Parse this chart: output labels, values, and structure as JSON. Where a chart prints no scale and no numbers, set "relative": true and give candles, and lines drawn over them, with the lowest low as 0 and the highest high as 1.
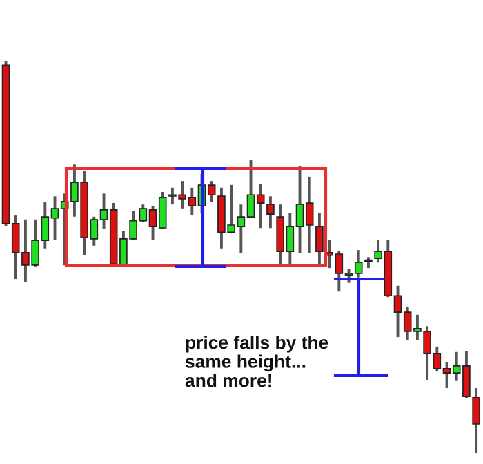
{
  "chart_data": {
    "type": "candlestick",
    "relative": true,
    "categories": [
      null,
      null,
      null,
      null,
      null,
      null,
      null,
      null,
      null,
      null,
      null,
      null,
      null,
      null,
      null,
      null,
      null,
      null,
      null,
      null,
      null,
      null,
      null,
      null,
      null,
      null,
      null,
      null,
      null,
      null,
      null,
      null,
      null,
      null,
      null,
      null,
      null,
      null,
      null,
      null,
      null,
      null,
      null,
      null,
      null,
      null,
      null,
      null,
      null
    ],
    "ohlc": [
      [
        0.989,
        1.0,
        0.581,
        0.585
      ],
      [
        0.585,
        0.602,
        0.447,
        0.511
      ],
      [
        0.511,
        0.592,
        0.44,
        0.479
      ],
      [
        0.479,
        0.592,
        0.479,
        0.542
      ],
      [
        0.542,
        0.637,
        0.525,
        0.602
      ],
      [
        0.599,
        0.651,
        0.546,
        0.623
      ],
      [
        0.623,
        0.658,
        0.482,
        0.641
      ],
      [
        0.641,
        0.732,
        0.606,
        0.69
      ],
      [
        0.69,
        0.715,
        0.507,
        0.549
      ],
      [
        0.546,
        0.599,
        0.532,
        0.595
      ],
      [
        0.595,
        0.658,
        0.574,
        0.62
      ],
      [
        0.62,
        0.634,
        0.482,
        0.482
      ],
      [
        0.479,
        0.563,
        0.479,
        0.546
      ],
      [
        0.546,
        0.613,
        0.546,
        0.592
      ],
      [
        0.592,
        0.63,
        0.592,
        0.623
      ],
      [
        0.62,
        0.627,
        0.546,
        0.577
      ],
      [
        0.574,
        0.662,
        0.574,
        0.651
      ],
      [
        0.655,
        0.673,
        0.637,
        0.658
      ],
      [
        0.658,
        0.69,
        0.627,
        0.648
      ],
      [
        0.651,
        0.673,
        0.609,
        0.63
      ],
      [
        0.63,
        0.708,
        0.616,
        0.683
      ],
      [
        0.683,
        0.69,
        0.644,
        0.658
      ],
      [
        0.655,
        0.673,
        0.525,
        0.563
      ],
      [
        0.563,
        0.68,
        0.563,
        0.581
      ],
      [
        0.577,
        0.63,
        0.514,
        0.602
      ],
      [
        0.602,
        0.743,
        0.602,
        0.658
      ],
      [
        0.658,
        0.683,
        0.577,
        0.637
      ],
      [
        0.634,
        0.651,
        0.577,
        0.609
      ],
      [
        0.602,
        0.63,
        0.479,
        0.514
      ],
      [
        0.514,
        0.609,
        0.479,
        0.577
      ],
      [
        0.577,
        0.729,
        0.514,
        0.634
      ],
      [
        0.637,
        0.701,
        0.514,
        0.581
      ],
      [
        0.577,
        0.609,
        0.479,
        0.514
      ],
      [
        0.511,
        0.539,
        0.475,
        0.504
      ],
      [
        0.507,
        0.511,
        0.415,
        0.458
      ],
      [
        0.454,
        0.465,
        0.437,
        0.458
      ],
      [
        0.458,
        0.514,
        0.451,
        0.486
      ],
      [
        0.489,
        0.496,
        0.475,
        0.489
      ],
      [
        0.496,
        0.539,
        0.489,
        0.514
      ],
      [
        0.514,
        0.539,
        0.401,
        0.401
      ],
      [
        0.401,
        0.423,
        0.299,
        0.359
      ],
      [
        0.359,
        0.37,
        0.292,
        0.31
      ],
      [
        0.31,
        0.349,
        0.292,
        0.317
      ],
      [
        0.31,
        0.32,
        0.19,
        0.254
      ],
      [
        0.254,
        0.268,
        0.211,
        0.215
      ],
      [
        0.215,
        0.229,
        0.169,
        0.204
      ],
      [
        0.204,
        0.254,
        0.187,
        0.222
      ],
      [
        0.222,
        0.257,
        0.144,
        0.144
      ],
      [
        0.141,
        0.162,
        0.0,
        0.074
      ]
    ],
    "colors": [
      "#dd1111",
      "#dd1111",
      "#dd1111",
      "#22dd22",
      "#22dd22",
      "#22dd22",
      "#22dd22",
      "#22dd22",
      "#dd1111",
      "#22dd22",
      "#22dd22",
      "#dd1111",
      "#22dd22",
      "#22dd22",
      "#22dd22",
      "#dd1111",
      "#22dd22",
      "#22dd22",
      "#dd1111",
      "#dd1111",
      "#22dd22",
      "#dd1111",
      "#dd1111",
      "#22dd22",
      "#22dd22",
      "#22dd22",
      "#dd1111",
      "#dd1111",
      "#dd1111",
      "#22dd22",
      "#22dd22",
      "#dd1111",
      "#dd1111",
      "#dd1111",
      "#dd1111",
      "#22dd22",
      "#22dd22",
      "#22dd22",
      "#22dd22",
      "#dd1111",
      "#dd1111",
      "#dd1111",
      "#22dd22",
      "#dd1111",
      "#dd1111",
      "#dd1111",
      "#22dd22",
      "#dd1111",
      "#dd1111"
    ],
    "annotations": [
      "price falls by the\nsame height...\nand more!"
    ]
  }
}
